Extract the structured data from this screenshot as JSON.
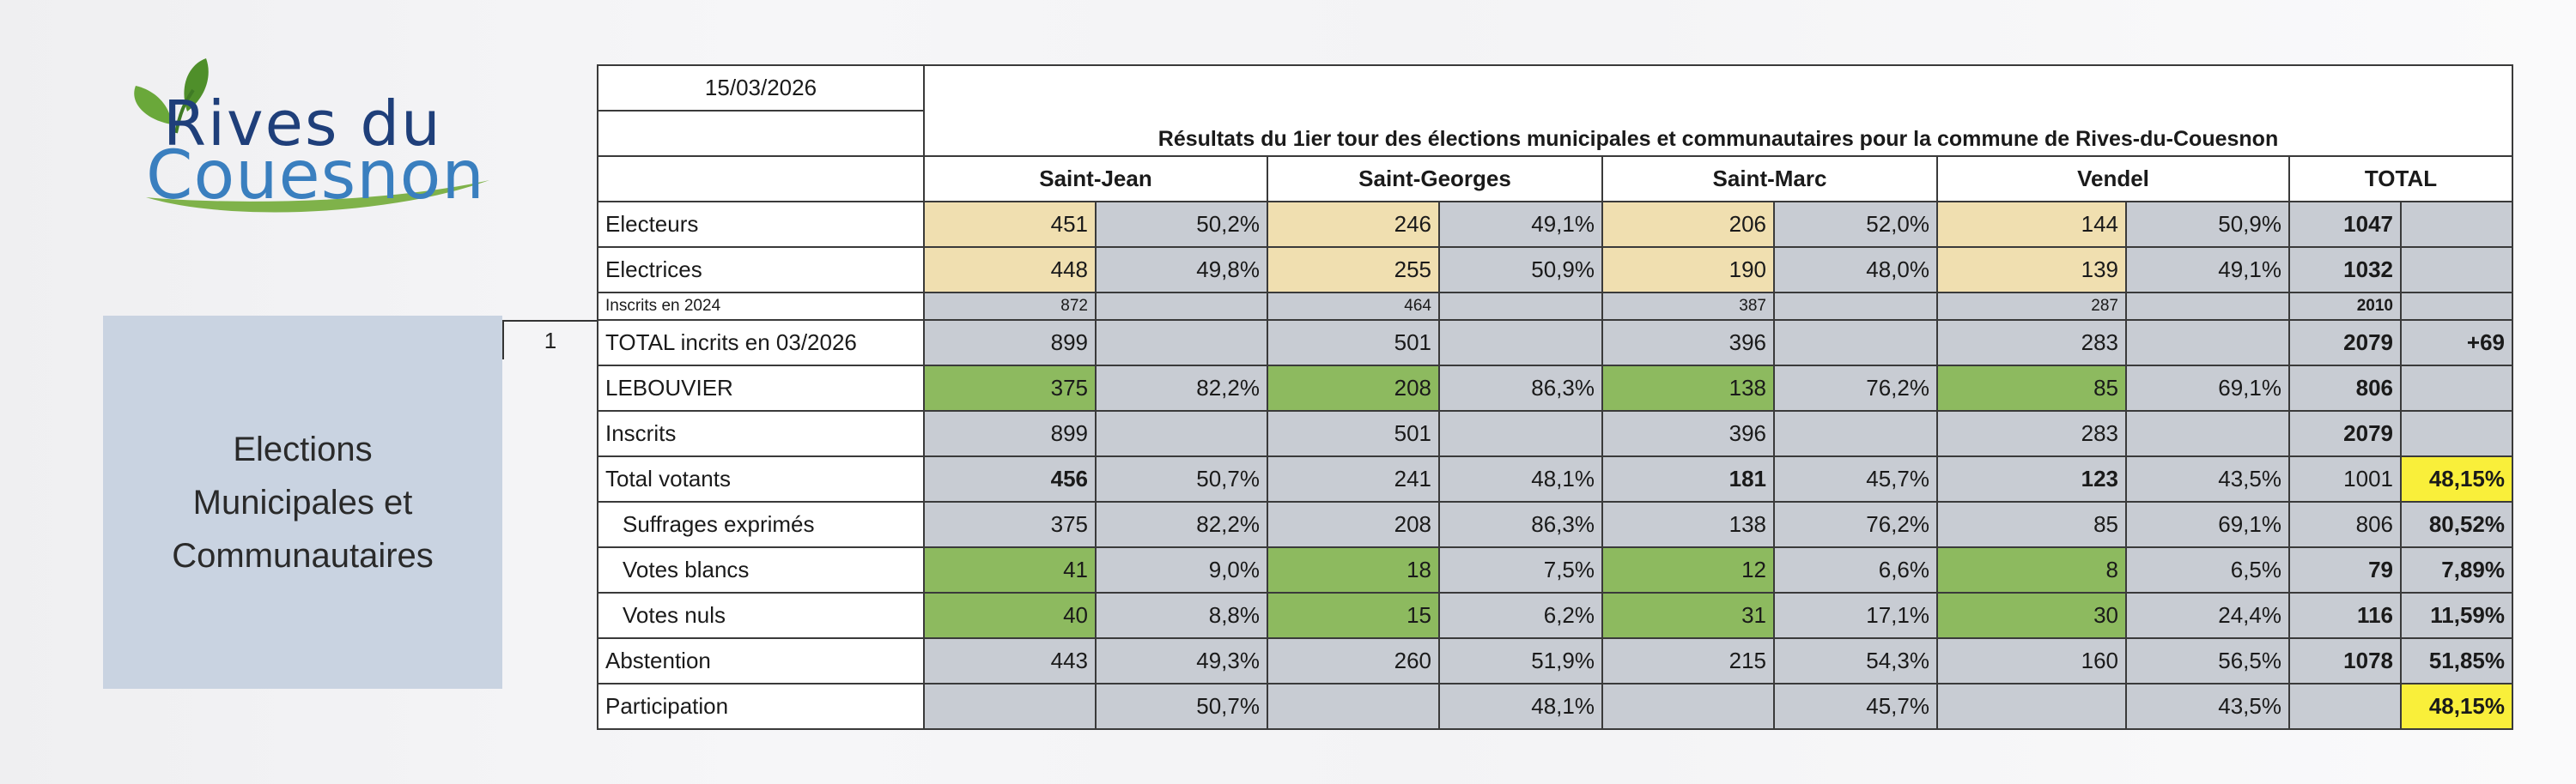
{
  "logo": {
    "line1": "Rives du",
    "line2": "Couesnon",
    "colors": {
      "dark_blue": "#1f3f7a",
      "light_blue": "#3a7fbf",
      "leaf_green": "#6aa83a"
    }
  },
  "side_panel": {
    "line1": "Elections",
    "line2": "Municipales et",
    "line3": "Communautaires"
  },
  "row_number": "1",
  "table": {
    "date": "15/03/2026",
    "title": "Résultats du 1ier tour des élections municipales et communautaires pour la commune de Rives-du-Couesnon",
    "communes": [
      "Saint-Jean",
      "Saint-Georges",
      "Saint-Marc",
      "Vendel",
      "TOTAL"
    ],
    "rows": {
      "electeurs": {
        "label": "Electeurs",
        "cells": [
          "451",
          "50,2%",
          "246",
          "49,1%",
          "206",
          "52,0%",
          "144",
          "50,9%",
          "1047",
          ""
        ]
      },
      "electrices": {
        "label": "Electrices",
        "cells": [
          "448",
          "49,8%",
          "255",
          "50,9%",
          "190",
          "48,0%",
          "139",
          "49,1%",
          "1032",
          ""
        ]
      },
      "inscrits_2024": {
        "label": "Inscrits en 2024",
        "cells": [
          "872",
          "",
          "464",
          "",
          "387",
          "",
          "287",
          "",
          "2010",
          ""
        ]
      },
      "total_inscrits": {
        "label": "TOTAL incrits en 03/2026",
        "cells": [
          "899",
          "",
          "501",
          "",
          "396",
          "",
          "283",
          "",
          "2079",
          "+69"
        ]
      },
      "lebouvier": {
        "label": "LEBOUVIER",
        "cells": [
          "375",
          "82,2%",
          "208",
          "86,3%",
          "138",
          "76,2%",
          "85",
          "69,1%",
          "806",
          ""
        ]
      },
      "inscrits": {
        "label": "Inscrits",
        "cells": [
          "899",
          "",
          "501",
          "",
          "396",
          "",
          "283",
          "",
          "2079",
          ""
        ]
      },
      "total_votants": {
        "label": "Total votants",
        "cells": [
          "456",
          "50,7%",
          "241",
          "48,1%",
          "181",
          "45,7%",
          "123",
          "43,5%",
          "1001",
          "48,15%"
        ]
      },
      "suffrages": {
        "label": "Suffrages exprimés",
        "cells": [
          "375",
          "82,2%",
          "208",
          "86,3%",
          "138",
          "76,2%",
          "85",
          "69,1%",
          "806",
          "80,52%"
        ]
      },
      "blancs": {
        "label": "Votes blancs",
        "cells": [
          "41",
          "9,0%",
          "18",
          "7,5%",
          "12",
          "6,6%",
          "8",
          "6,5%",
          "79",
          "7,89%"
        ]
      },
      "nuls": {
        "label": "Votes nuls",
        "cells": [
          "40",
          "8,8%",
          "15",
          "6,2%",
          "31",
          "17,1%",
          "30",
          "24,4%",
          "116",
          "11,59%"
        ]
      },
      "abstention": {
        "label": "Abstention",
        "cells": [
          "443",
          "49,3%",
          "260",
          "51,9%",
          "215",
          "54,3%",
          "160",
          "56,5%",
          "1078",
          "51,85%"
        ]
      },
      "participation": {
        "label": "Participation",
        "cells": [
          "",
          "50,7%",
          "",
          "48,1%",
          "",
          "45,7%",
          "",
          "43,5%",
          "",
          "48,15%"
        ]
      }
    },
    "colors": {
      "grey": "#c8ccd3",
      "beige": "#f0dfb0",
      "green": "#8dba5f",
      "yellow": "#f9ef3a"
    }
  }
}
